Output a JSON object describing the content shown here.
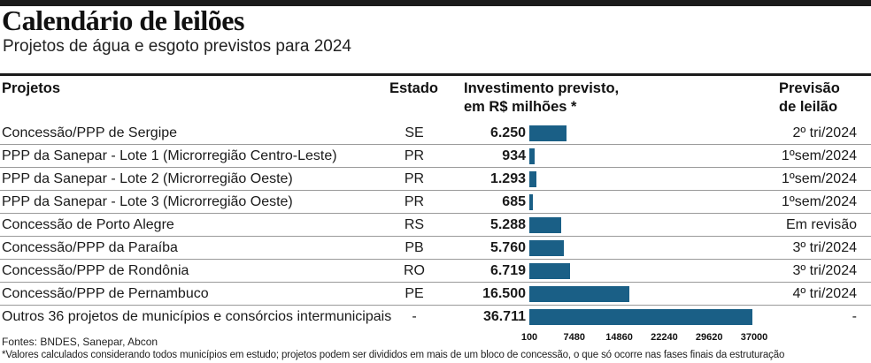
{
  "title": "Calendário de leilões",
  "subtitle": "Projetos de água e esgoto previstos para 2024",
  "headers": {
    "projetos": "Projetos",
    "estado": "Estado",
    "investimento_l1": "Investimento previsto,",
    "investimento_l2": "em R$ milhões *",
    "previsao_l1": "Previsão",
    "previsao_l2": "de leilão"
  },
  "chart_data": {
    "type": "bar",
    "orientation": "horizontal",
    "xlim": [
      100,
      37000
    ],
    "ticks": [
      "100",
      "7480",
      "14860",
      "22240",
      "29620",
      "37000"
    ],
    "rows": [
      {
        "project": "Concessão/PPP de Sergipe",
        "state": "SE",
        "label": "6.250",
        "value": 6250,
        "forecast": "2º tri/2024"
      },
      {
        "project": "PPP da Sanepar - Lote 1 (Microrregião Centro-Leste)",
        "state": "PR",
        "label": "934",
        "value": 934,
        "forecast": "1ºsem/2024"
      },
      {
        "project": "PPP da Sanepar - Lote 2 (Microrregião Oeste)",
        "state": "PR",
        "label": "1.293",
        "value": 1293,
        "forecast": "1ºsem/2024"
      },
      {
        "project": "PPP da Sanepar - Lote 3 (Microrregião Oeste)",
        "state": "PR",
        "label": "685",
        "value": 685,
        "forecast": "1ºsem/2024"
      },
      {
        "project": "Concessão de Porto Alegre",
        "state": "RS",
        "label": "5.288",
        "value": 5288,
        "forecast": "Em revisão"
      },
      {
        "project": "Concessão/PPP da Paraíba",
        "state": "PB",
        "label": "5.760",
        "value": 5760,
        "forecast": "3º tri/2024"
      },
      {
        "project": "Concessão/PPP de Rondônia",
        "state": "RO",
        "label": "6.719",
        "value": 6719,
        "forecast": "3º tri/2024"
      },
      {
        "project": "Concessão/PPP de Pernambuco",
        "state": "PE",
        "label": "16.500",
        "value": 16500,
        "forecast": "4º tri/2024"
      },
      {
        "project": "Outros 36 projetos de municípios e consórcios intermunicipais",
        "state": "-",
        "label": "36.711",
        "value": 36711,
        "forecast": "-"
      }
    ],
    "bar_color": "#1a5f86"
  },
  "footer": {
    "sources": "Fontes: BNDES, Sanepar, Abcon",
    "note": "*Valores calculados considerando todos municípios em estudo; projetos podem ser divididos em mais de um bloco de concessão, o que só ocorre nas fases finais da estruturação"
  }
}
